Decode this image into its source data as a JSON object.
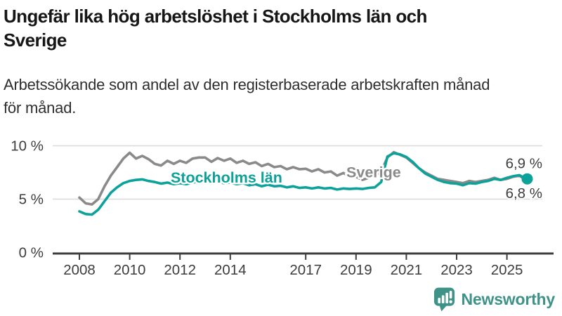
{
  "header": {
    "title": "Ungefär lika hög arbetslöshet i Stockholms län och Sverige",
    "title_lines": [
      "Ungefär lika hög arbetslöshet i Stockholms län och",
      "Sverige"
    ],
    "subtitle": "Arbetssökande som andel av den registerbaserade arbetskraften månad för månad.",
    "subtitle_lines": [
      "Arbetssökande som andel av den registerbaserade arbetskraften månad",
      "för månad."
    ]
  },
  "chart_data": {
    "type": "line",
    "title": "Ungefär lika hög arbetslöshet i Stockholms län och Sverige",
    "subtitle": "Arbetssökande som andel av den registerbaserade arbetskraften månad för månad.",
    "unit": "%",
    "grid": "horizontal",
    "x_start": 2008.0,
    "x_step": 0.25,
    "xlim": [
      2008,
      2025.8
    ],
    "ylim": [
      0,
      10.9
    ],
    "x_ticks": [
      2008,
      2010,
      2012,
      2014,
      2017,
      2019,
      2021,
      2023,
      2025
    ],
    "y_ticks": [
      {
        "value": 0,
        "label": "0 %"
      },
      {
        "value": 5,
        "label": "5 %"
      },
      {
        "value": 10,
        "label": "10 %"
      }
    ],
    "series": [
      {
        "name": "Sverige",
        "color": "#8a8a8a",
        "end_label": "6,8 %",
        "end_dot": false,
        "label_anchor": {
          "x": 2019.7,
          "y": 7.5
        },
        "values": [
          5.15,
          4.6,
          4.5,
          5.0,
          6.2,
          7.2,
          8.0,
          8.8,
          9.35,
          8.8,
          9.05,
          8.75,
          8.3,
          8.15,
          8.6,
          8.3,
          8.6,
          8.4,
          8.8,
          8.9,
          8.9,
          8.5,
          8.85,
          8.6,
          8.8,
          8.4,
          8.6,
          8.3,
          8.45,
          8.1,
          8.3,
          8.0,
          8.1,
          7.8,
          8.0,
          7.8,
          7.85,
          7.6,
          7.8,
          7.5,
          7.6,
          7.2,
          7.45,
          7.1,
          7.1,
          6.8,
          7.0,
          7.2,
          7.6,
          8.9,
          9.4,
          9.15,
          8.9,
          8.4,
          7.9,
          7.5,
          7.2,
          6.9,
          6.8,
          6.7,
          6.6,
          6.5,
          6.7,
          6.6,
          6.7,
          6.8,
          7.0,
          6.8,
          6.9,
          7.1,
          7.2,
          6.8
        ]
      },
      {
        "name": "Stockholms län",
        "color": "#0ca299",
        "end_label": "6,9 %",
        "end_dot": true,
        "label_anchor": {
          "x": 2013.85,
          "y": 7.0
        },
        "values": [
          3.85,
          3.6,
          3.55,
          4.0,
          4.8,
          5.6,
          6.1,
          6.5,
          6.7,
          6.8,
          6.85,
          6.7,
          6.6,
          6.45,
          6.55,
          6.4,
          6.5,
          6.4,
          6.55,
          6.65,
          6.6,
          6.5,
          6.6,
          6.5,
          6.55,
          6.4,
          6.5,
          6.3,
          6.4,
          6.2,
          6.35,
          6.2,
          6.25,
          6.1,
          6.2,
          6.05,
          6.1,
          6.0,
          6.1,
          6.0,
          6.05,
          5.9,
          6.0,
          5.95,
          6.0,
          5.95,
          6.05,
          6.1,
          6.6,
          9.0,
          9.3,
          9.2,
          8.95,
          8.5,
          7.9,
          7.4,
          7.1,
          6.8,
          6.6,
          6.5,
          6.45,
          6.3,
          6.5,
          6.45,
          6.6,
          6.7,
          6.9,
          6.8,
          7.0,
          7.15,
          7.25,
          6.9
        ]
      }
    ],
    "axis_color": "#3d3d3d",
    "grid_color": "#dcdcdc",
    "tick_label_color": "#3d3d3d",
    "end_label_color": "#3d3d3d"
  },
  "footer": {
    "brand": "Newsworthy",
    "brand_color": "#3f9287",
    "logo_icon": "newsworthy-chart-bubble-icon"
  }
}
